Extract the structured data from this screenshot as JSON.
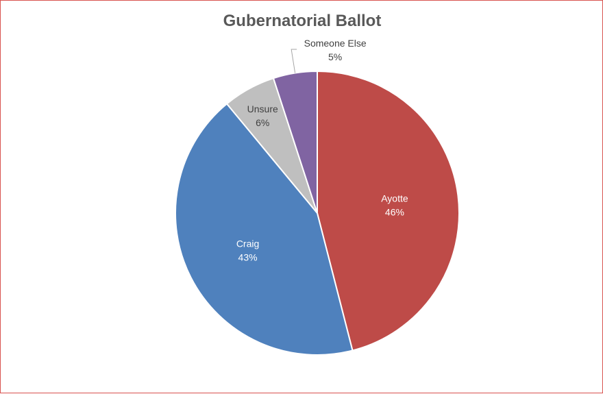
{
  "chart_data": {
    "type": "pie",
    "title": "Gubernatorial Ballot",
    "slices": [
      {
        "label": "Ayotte",
        "value": 46,
        "value_label": "46%",
        "color": "#BE4B48"
      },
      {
        "label": "Craig",
        "value": 43,
        "value_label": "43%",
        "color": "#4F81BD"
      },
      {
        "label": "Unsure",
        "value": 6,
        "value_label": "6%",
        "color": "#BFBFBF"
      },
      {
        "label": "Someone Else",
        "value": 5,
        "value_label": "5%",
        "color": "#8064A2"
      }
    ],
    "start": "12 o'clock",
    "direction": "clockwise",
    "data_labels": "category and percent",
    "legend": "none"
  }
}
